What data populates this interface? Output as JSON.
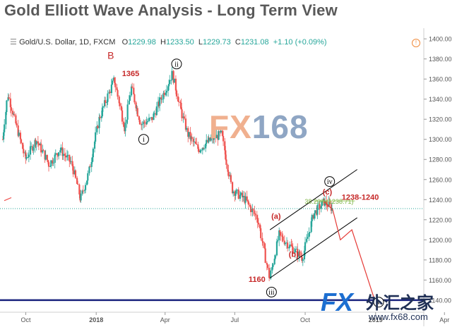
{
  "title": "Gold Elliott Wave Analysis - Long Term View",
  "symbol_bar": {
    "icon": "collapse-icon",
    "symbol": "Gold/U.S. Dollar, 1D, FXCM",
    "open_label": "O",
    "open": "1229.98",
    "high_label": "H",
    "high": "1233.50",
    "low_label": "L",
    "low": "1229.73",
    "close_label": "C",
    "close": "1231.08",
    "change": "+1.10 (+0.09%)"
  },
  "watermark": {
    "fx": "FX",
    "num": "168"
  },
  "corner_logo": {
    "fx": "FX",
    "cn": "外汇之家",
    "url": "www.fx68.com"
  },
  "colors": {
    "candle_up": "#26a69a",
    "candle_down": "#ef5350",
    "channel": "#000000",
    "projection": "#e53935",
    "fib_line": "#9ccc65",
    "support_line": "#1a237e",
    "label_red": "#c62828",
    "dotted_price": "#26a69a"
  },
  "chart_data": {
    "type": "candlestick",
    "ylim": [
      1135,
      1405
    ],
    "yticks": [
      "1400.00",
      "1380.00",
      "1360.00",
      "1340.00",
      "1320.00",
      "1300.00",
      "1280.00",
      "1260.00",
      "1240.00",
      "1220.00",
      "1200.00",
      "1180.00",
      "1160.00",
      "1140.00"
    ],
    "x_domain": [
      "2017-09-01",
      "2019-03-05"
    ],
    "xticks": [
      {
        "label": "Oct",
        "date": "2017-10-01"
      },
      {
        "label": "2018",
        "date": "2018-01-01"
      },
      {
        "label": "Apr",
        "date": "2018-04-01"
      },
      {
        "label": "Jul",
        "date": "2018-07-01"
      },
      {
        "label": "Oct",
        "date": "2018-10-01"
      },
      {
        "label": "2019",
        "date": "2019-01-01"
      },
      {
        "label": "Apr",
        "date": "2019-04-01"
      }
    ],
    "price_path": [
      [
        "2017-09-01",
        1300
      ],
      [
        "2017-09-08",
        1345
      ],
      [
        "2017-09-15",
        1325
      ],
      [
        "2017-10-01",
        1280
      ],
      [
        "2017-10-15",
        1300
      ],
      [
        "2017-11-01",
        1275
      ],
      [
        "2017-11-15",
        1290
      ],
      [
        "2017-12-01",
        1275
      ],
      [
        "2017-12-12",
        1240
      ],
      [
        "2017-12-22",
        1265
      ],
      [
        "2018-01-05",
        1320
      ],
      [
        "2018-01-25",
        1360
      ],
      [
        "2018-02-08",
        1310
      ],
      [
        "2018-02-16",
        1352
      ],
      [
        "2018-03-01",
        1315
      ],
      [
        "2018-03-15",
        1320
      ],
      [
        "2018-04-11",
        1365
      ],
      [
        "2018-04-20",
        1335
      ],
      [
        "2018-05-01",
        1305
      ],
      [
        "2018-05-15",
        1290
      ],
      [
        "2018-06-01",
        1300
      ],
      [
        "2018-06-14",
        1305
      ],
      [
        "2018-06-28",
        1250
      ],
      [
        "2018-07-15",
        1240
      ],
      [
        "2018-08-01",
        1220
      ],
      [
        "2018-08-16",
        1160
      ],
      [
        "2018-08-28",
        1205
      ],
      [
        "2018-09-10",
        1195
      ],
      [
        "2018-09-28",
        1182
      ],
      [
        "2018-10-12",
        1225
      ],
      [
        "2018-10-26",
        1238
      ],
      [
        "2018-11-06",
        1231
      ]
    ],
    "current_price": 1231.08,
    "channel": {
      "upper": [
        [
          "2018-08-16",
          1210
        ],
        [
          "2018-12-08",
          1270
        ]
      ],
      "lower": [
        [
          "2018-08-16",
          1162
        ],
        [
          "2018-12-08",
          1222
        ]
      ]
    },
    "fib_level": {
      "value": 1238.71,
      "label": "38.20%(1238.71)",
      "start": "2018-10-12",
      "end": "2018-12-05"
    },
    "support_level": 1140,
    "projection": [
      [
        "2018-10-26",
        1238
      ],
      [
        "2018-11-06",
        1230
      ],
      [
        "2018-11-16",
        1200
      ],
      [
        "2018-12-01",
        1210
      ],
      [
        "2018-12-30",
        1142
      ]
    ],
    "annotations": [
      {
        "text": "B",
        "style": "plain",
        "date": "2018-01-20",
        "price": 1380
      },
      {
        "text": "1365",
        "style": "red-bold",
        "date": "2018-02-15",
        "price": 1363
      },
      {
        "text": "ii",
        "style": "circle",
        "date": "2018-04-16",
        "price": 1375
      },
      {
        "text": "i",
        "style": "circle",
        "date": "2018-03-04",
        "price": 1300
      },
      {
        "text": "iv",
        "style": "circle",
        "date": "2018-11-02",
        "price": 1258
      },
      {
        "text": "(c)",
        "style": "red",
        "date": "2018-10-30",
        "price": 1245
      },
      {
        "text": "(a)",
        "style": "red",
        "date": "2018-08-24",
        "price": 1221
      },
      {
        "text": "(b)",
        "style": "red",
        "date": "2018-09-16",
        "price": 1183
      },
      {
        "text": "1160",
        "style": "red-bold",
        "date": "2018-07-30",
        "price": 1158
      },
      {
        "text": "iii",
        "style": "circle",
        "date": "2018-08-18",
        "price": 1148
      },
      {
        "text": "v",
        "style": "circle",
        "date": "2019-01-05",
        "price": 1138
      },
      {
        "text": "1238-1240",
        "style": "red-bold",
        "date": "2018-12-12",
        "price": 1240
      }
    ]
  }
}
